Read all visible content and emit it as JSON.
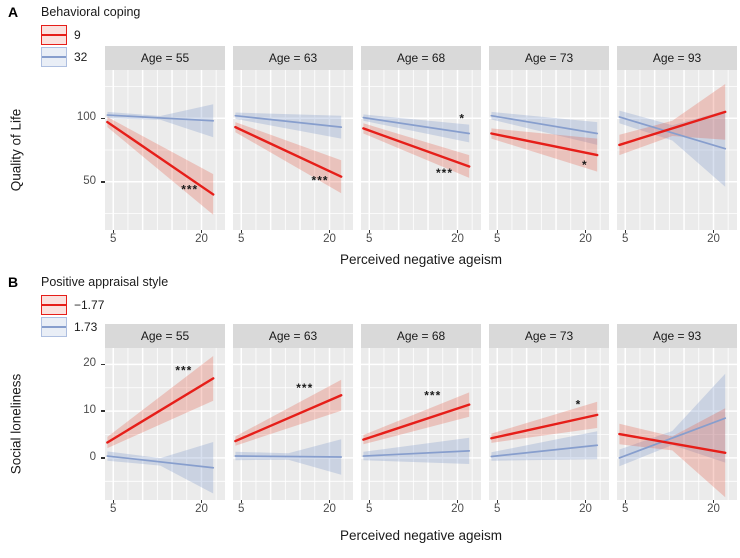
{
  "colors": {
    "red_line": "#e61e19",
    "blue_line": "#879ecd",
    "red_fill": "rgba(230,90,70,0.28)",
    "blue_fill": "rgba(135,158,205,0.32)",
    "panel_bg": "#ebebeb",
    "strip_bg": "#d9d9d9",
    "grid": "#ffffff",
    "axis_text": "#4d4d4d",
    "annotation": "#1a1a1a"
  },
  "chart_data": [
    {
      "type": "line",
      "panel_label": "A",
      "legend_title": "Behavioral coping",
      "legend": [
        {
          "name": "9",
          "color_key": "red"
        },
        {
          "name": "32",
          "color_key": "blue"
        }
      ],
      "xlabel": "Perceived negative ageism",
      "ylabel": "Quality of Life",
      "facet_by": "Age",
      "xlim": [
        3.6,
        24
      ],
      "ylim": [
        12,
        138
      ],
      "x_ticks": [
        {
          "value": 5,
          "label": "5"
        },
        {
          "value": 20,
          "label": "20"
        }
      ],
      "y_ticks": [
        {
          "value": 100,
          "label": "100"
        },
        {
          "value": 50,
          "label": "50"
        }
      ],
      "x_grid_major": [
        5,
        10,
        15,
        20
      ],
      "x_grid_minor": [
        7.5,
        12.5,
        17.5,
        22.5
      ],
      "y_grid_major": [
        50,
        100
      ],
      "y_grid_minor": [
        25,
        75,
        125
      ],
      "facets": [
        {
          "label": "Age = 55",
          "series": [
            {
              "name": "9",
              "color_key": "red",
              "x": [
                4,
                22
              ],
              "y": [
                97,
                40
              ],
              "ci_halfwidth": [
                4,
                16
              ]
            },
            {
              "name": "32",
              "color_key": "blue",
              "x": [
                4,
                22
              ],
              "y": [
                102.5,
                98
              ],
              "ci_halfwidth": [
                2.5,
                1.5,
                13
              ]
            }
          ],
          "annotations": [
            {
              "x": 18,
              "y": 44,
              "text": "***"
            }
          ]
        },
        {
          "label": "Age = 63",
          "series": [
            {
              "name": "9",
              "color_key": "red",
              "x": [
                4,
                22
              ],
              "y": [
                93,
                54
              ],
              "ci_halfwidth": [
                4,
                13
              ]
            },
            {
              "name": "32",
              "color_key": "blue",
              "x": [
                4,
                22
              ],
              "y": [
                102,
                93
              ],
              "ci_halfwidth": [
                2.5,
                9
              ]
            }
          ],
          "annotations": [
            {
              "x": 18.4,
              "y": 51,
              "text": "***"
            }
          ]
        },
        {
          "label": "Age = 68",
          "series": [
            {
              "name": "9",
              "color_key": "red",
              "x": [
                4,
                22
              ],
              "y": [
                92,
                62
              ],
              "ci_halfwidth": [
                4,
                9
              ]
            },
            {
              "name": "32",
              "color_key": "blue",
              "x": [
                4,
                22
              ],
              "y": [
                100.5,
                88
              ],
              "ci_halfwidth": [
                2.5,
                7
              ]
            }
          ],
          "annotations": [
            {
              "x": 17.8,
              "y": 57,
              "text": "***"
            },
            {
              "x": 20.8,
              "y": 100,
              "text": "*"
            }
          ]
        },
        {
          "label": "Age = 73",
          "series": [
            {
              "name": "9",
              "color_key": "red",
              "x": [
                4,
                22
              ],
              "y": [
                88,
                71
              ],
              "ci_halfwidth": [
                4,
                13
              ]
            },
            {
              "name": "32",
              "color_key": "blue",
              "x": [
                4,
                22
              ],
              "y": [
                102,
                88
              ],
              "ci_halfwidth": [
                3,
                9
              ]
            }
          ],
          "annotations": [
            {
              "x": 19.9,
              "y": 63,
              "text": "*"
            }
          ]
        },
        {
          "label": "Age = 93",
          "series": [
            {
              "name": "9",
              "color_key": "red",
              "x": [
                4,
                22
              ],
              "y": [
                79,
                105
              ],
              "ci_halfwidth": [
                8,
                6,
                22
              ]
            },
            {
              "name": "32",
              "color_key": "blue",
              "x": [
                4,
                22
              ],
              "y": [
                101,
                76
              ],
              "ci_halfwidth": [
                5,
                6,
                30
              ]
            }
          ],
          "annotations": []
        }
      ]
    },
    {
      "type": "line",
      "panel_label": "B",
      "legend_title": "Positive appraisal style",
      "legend": [
        {
          "name": "−1.77",
          "color_key": "red"
        },
        {
          "name": "1.73",
          "color_key": "blue"
        }
      ],
      "xlabel": "Perceived negative ageism",
      "ylabel": "Social loneliness",
      "facet_by": "Age",
      "xlim": [
        3.6,
        24
      ],
      "ylim": [
        -9,
        23.5
      ],
      "x_ticks": [
        {
          "value": 5,
          "label": "5"
        },
        {
          "value": 20,
          "label": "20"
        }
      ],
      "y_ticks": [
        {
          "value": 20,
          "label": "20"
        },
        {
          "value": 10,
          "label": "10"
        },
        {
          "value": 0,
          "label": "0"
        }
      ],
      "x_grid_major": [
        5,
        10,
        15,
        20
      ],
      "x_grid_minor": [
        7.5,
        12.5,
        17.5,
        22.5
      ],
      "y_grid_major": [
        0,
        10,
        20
      ],
      "y_grid_minor": [
        -5,
        5,
        15
      ],
      "facets": [
        {
          "label": "Age = 55",
          "series": [
            {
              "name": "−1.77",
              "color_key": "red",
              "x": [
                4,
                22
              ],
              "y": [
                3.3,
                17
              ],
              "ci_halfwidth": [
                1.2,
                4.8
              ]
            },
            {
              "name": "1.73",
              "color_key": "blue",
              "x": [
                4,
                22
              ],
              "y": [
                0.4,
                -2.1
              ],
              "ci_halfwidth": [
                1.0,
                0.8,
                5.5
              ]
            }
          ],
          "annotations": [
            {
              "x": 17,
              "y": 18.7,
              "text": "***"
            }
          ]
        },
        {
          "label": "Age = 63",
          "series": [
            {
              "name": "−1.77",
              "color_key": "red",
              "x": [
                4,
                22
              ],
              "y": [
                3.6,
                13.4
              ],
              "ci_halfwidth": [
                1.0,
                3.3
              ]
            },
            {
              "name": "1.73",
              "color_key": "blue",
              "x": [
                4,
                22
              ],
              "y": [
                0.4,
                0.2
              ],
              "ci_halfwidth": [
                0.9,
                0.7,
                3.8
              ]
            }
          ],
          "annotations": [
            {
              "x": 15.8,
              "y": 15.0,
              "text": "***"
            }
          ]
        },
        {
          "label": "Age = 68",
          "series": [
            {
              "name": "−1.77",
              "color_key": "red",
              "x": [
                4,
                22
              ],
              "y": [
                3.9,
                11.4
              ],
              "ci_halfwidth": [
                1.0,
                2.6
              ]
            },
            {
              "name": "1.73",
              "color_key": "blue",
              "x": [
                4,
                22
              ],
              "y": [
                0.4,
                1.5
              ],
              "ci_halfwidth": [
                0.9,
                2.8
              ]
            }
          ],
          "annotations": [
            {
              "x": 15.8,
              "y": 13.3,
              "text": "***"
            }
          ]
        },
        {
          "label": "Age = 73",
          "series": [
            {
              "name": "−1.77",
              "color_key": "red",
              "x": [
                4,
                22
              ],
              "y": [
                4.2,
                9.2
              ],
              "ci_halfwidth": [
                1.0,
                2.8
              ]
            },
            {
              "name": "1.73",
              "color_key": "blue",
              "x": [
                4,
                22
              ],
              "y": [
                0.3,
                2.7
              ],
              "ci_halfwidth": [
                0.9,
                3.0
              ]
            }
          ],
          "annotations": [
            {
              "x": 18.8,
              "y": 11.4,
              "text": "*"
            }
          ]
        },
        {
          "label": "Age = 93",
          "series": [
            {
              "name": "−1.77",
              "color_key": "red",
              "x": [
                4,
                22
              ],
              "y": [
                5.1,
                1.1
              ],
              "ci_halfwidth": [
                2.2,
                1.5,
                9.5
              ]
            },
            {
              "name": "1.73",
              "color_key": "blue",
              "x": [
                4,
                22
              ],
              "y": [
                0.0,
                8.5
              ],
              "ci_halfwidth": [
                1.8,
                1.5,
                9.5
              ]
            }
          ],
          "annotations": []
        }
      ]
    }
  ]
}
